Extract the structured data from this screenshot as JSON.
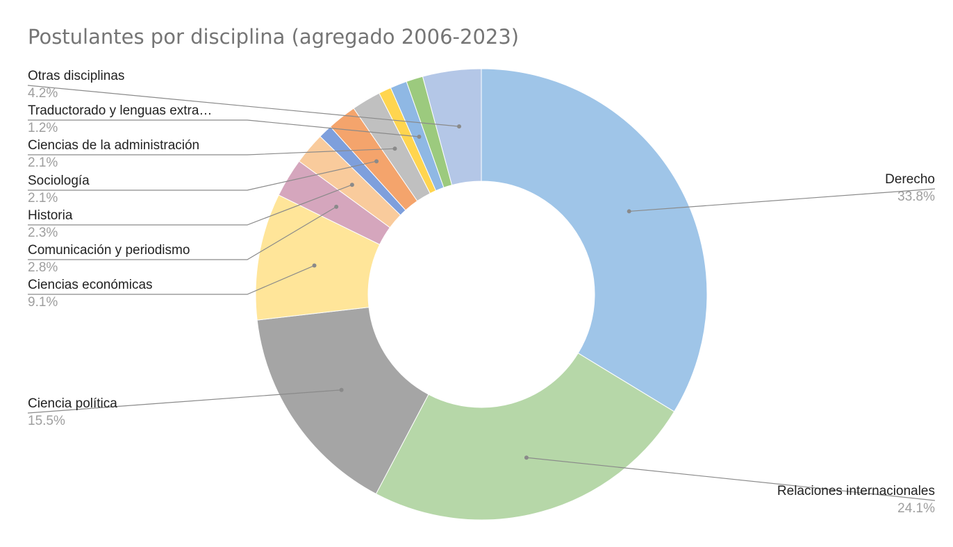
{
  "chart_data": {
    "type": "pie",
    "variant": "donut",
    "title": "Postulantes por disciplina (agregado 2006-2023)",
    "legend": "none",
    "slices": [
      {
        "label": "Derecho",
        "value": 33.8,
        "display": "33.8%",
        "color": "#9fc5e8",
        "label_side": "right"
      },
      {
        "label": "Relaciones internacionales",
        "value": 24.1,
        "display": "24.1%",
        "color": "#b6d7a8",
        "label_side": "right"
      },
      {
        "label": "Ciencia política",
        "value": 15.5,
        "display": "15.5%",
        "color": "#a5a5a5",
        "label_side": "left"
      },
      {
        "label": "Ciencias económicas",
        "value": 9.1,
        "display": "9.1%",
        "color": "#ffe599",
        "label_side": "left"
      },
      {
        "label": "Comunicación y periodismo",
        "value": 2.8,
        "display": "2.8%",
        "color": "#d5a6bd",
        "label_side": "left"
      },
      {
        "label": "Historia",
        "value": 2.3,
        "display": "2.3%",
        "color": "#f9cb9c",
        "label_side": "left"
      },
      {
        "label": "",
        "value": 1.0,
        "display": "",
        "color": "#7e9fdc",
        "label_side": "none"
      },
      {
        "label": "Sociología",
        "value": 2.1,
        "display": "2.1%",
        "color": "#f4a46c",
        "label_side": "left"
      },
      {
        "label": "Ciencias de la administración",
        "value": 2.1,
        "display": "2.1%",
        "color": "#c0c0c0",
        "label_side": "left"
      },
      {
        "label": "",
        "value": 0.9,
        "display": "",
        "color": "#ffd54f",
        "label_side": "none"
      },
      {
        "label": "Traductorado y lenguas extra…",
        "value": 1.2,
        "display": "1.2%",
        "color": "#8fb8e4",
        "label_side": "left"
      },
      {
        "label": "",
        "value": 1.2,
        "display": "",
        "color": "#9cca7e",
        "label_side": "none"
      },
      {
        "label": "Otras disciplinas",
        "value": 4.2,
        "display": "4.2%",
        "color": "#b4c7e7",
        "label_side": "left"
      }
    ]
  }
}
